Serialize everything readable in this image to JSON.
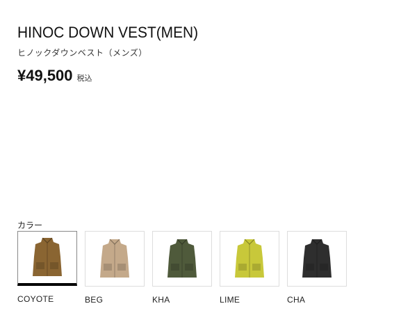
{
  "product": {
    "title": "HINOC DOWN VEST(MEN)",
    "subtitle": "ヒノックダウンベスト（メンズ）",
    "price": "¥49,500",
    "tax_label": "税込"
  },
  "colors": {
    "label": "カラー",
    "selected": "COYOTE",
    "items": [
      {
        "name": "COYOTE",
        "hex": "#8a6532"
      },
      {
        "name": "BEG",
        "hex": "#c4a98a"
      },
      {
        "name": "KHA",
        "hex": "#4f5a3b"
      },
      {
        "name": "LIME",
        "hex": "#c8c83a"
      },
      {
        "name": "CHA",
        "hex": "#2e2e2e"
      }
    ]
  }
}
